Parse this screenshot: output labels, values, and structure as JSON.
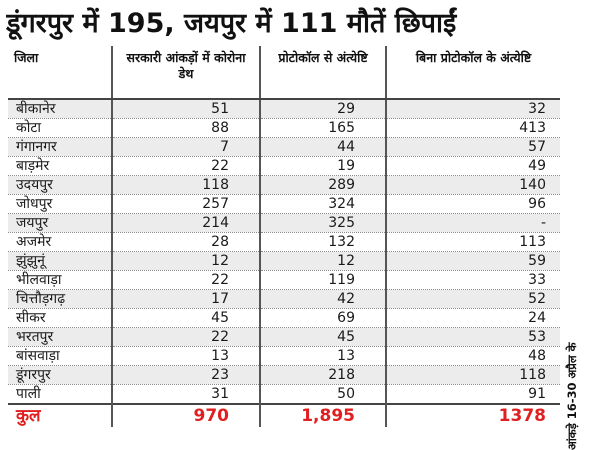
{
  "headline": "डूंगरपुर में 195, जयपुर में 111 मौतें छिपाईं",
  "table": {
    "headers": [
      "जिला",
      "सरकारी आंकड़ों में कोरोना डेथ",
      "प्रोटोकॉल से अंत्येष्टि",
      "बिना प्रोटोकॉल के अंत्येष्टि"
    ],
    "rows": [
      [
        "बीकानेर",
        "51",
        "29",
        "32"
      ],
      [
        "कोटा",
        "88",
        "165",
        "413"
      ],
      [
        "गंगानगर",
        "7",
        "44",
        "57"
      ],
      [
        "बाड़मेर",
        "22",
        "19",
        "49"
      ],
      [
        "उदयपुर",
        "118",
        "289",
        "140"
      ],
      [
        "जोधपुर",
        "257",
        "324",
        "96"
      ],
      [
        "जयपुर",
        "214",
        "325",
        "-"
      ],
      [
        "अजमेर",
        "28",
        "132",
        "113"
      ],
      [
        "झुंझुनूं",
        "12",
        "12",
        "59"
      ],
      [
        "भीलवाड़ा",
        "22",
        "119",
        "33"
      ],
      [
        "चित्तौड़गढ़",
        "17",
        "42",
        "52"
      ],
      [
        "सीकर",
        "45",
        "69",
        "24"
      ],
      [
        "भरतपुर",
        "22",
        "45",
        "53"
      ],
      [
        "बांसवाड़ा",
        "13",
        "13",
        "48"
      ],
      [
        "डूंगरपुर",
        "23",
        "218",
        "118"
      ],
      [
        "पाली",
        "31",
        "50",
        "91"
      ]
    ],
    "total": [
      "कुल",
      "970",
      "1,895",
      "1378"
    ]
  },
  "source_note": "आंकड़े 16-30 अप्रैल के",
  "colors": {
    "total_text": "#e02020",
    "row_shade": "#ececec"
  }
}
